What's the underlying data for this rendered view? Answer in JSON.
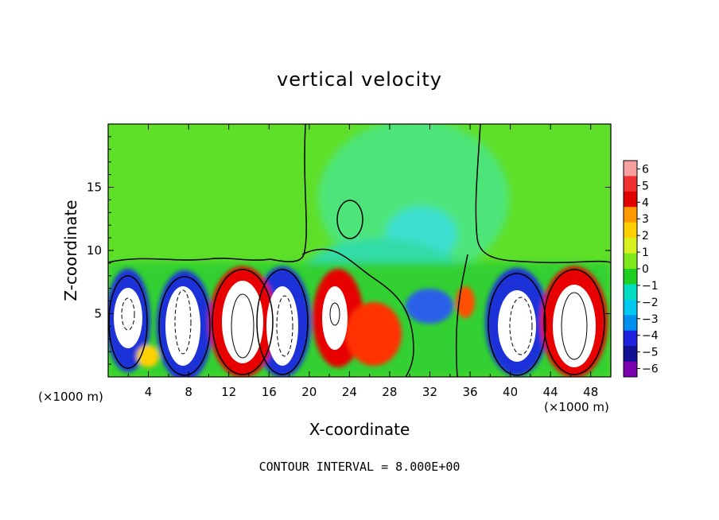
{
  "chart_data": {
    "type": "heatmap",
    "title": "vertical velocity",
    "xlabel": "X-coordinate",
    "ylabel": "Z-coordinate",
    "x_unit_left": "(×1000 m)",
    "x_unit_right": "(×1000 m)",
    "xlim": [
      0,
      50
    ],
    "ylim": [
      0,
      20
    ],
    "x_ticks": [
      4,
      8,
      12,
      16,
      20,
      24,
      28,
      32,
      36,
      40,
      44,
      48
    ],
    "y_ticks": [
      5,
      10,
      15
    ],
    "colorbar": {
      "ticks": [
        6,
        5,
        4,
        3,
        2,
        1,
        0,
        -1,
        -2,
        -3,
        -4,
        -5,
        -6
      ],
      "colors": [
        "#f7a0a0",
        "#f03030",
        "#e00000",
        "#ff9900",
        "#ffd000",
        "#d8ef20",
        "#7fe81a",
        "#20d020",
        "#00ddc0",
        "#00c8f0",
        "#0090f0",
        "#2020e0",
        "#101090",
        "#7b00b0"
      ]
    },
    "cells": [
      {
        "x": 2.0,
        "z": 4.5,
        "w": -6
      },
      {
        "x": 3.5,
        "z": 6.5,
        "w": -4
      },
      {
        "x": 7.0,
        "z": 4.0,
        "w": -6
      },
      {
        "x": 5.5,
        "z": 2.5,
        "w": 2
      },
      {
        "x": 13.0,
        "z": 4.0,
        "w": 6
      },
      {
        "x": 17.5,
        "z": 4.0,
        "w": -6
      },
      {
        "x": 22.5,
        "z": 4.0,
        "w": 6
      },
      {
        "x": 26.0,
        "z": 3.5,
        "w": 4
      },
      {
        "x": 31.5,
        "z": 11.5,
        "w": -2
      },
      {
        "x": 33.5,
        "z": 6.0,
        "w": -3
      },
      {
        "x": 35.5,
        "z": 5.5,
        "w": 4
      },
      {
        "x": 41.5,
        "z": 4.0,
        "w": -6
      },
      {
        "x": 46.5,
        "z": 4.0,
        "w": 6
      }
    ],
    "contour_interval_label": "CONTOUR INTERVAL = 8.000E+00"
  }
}
